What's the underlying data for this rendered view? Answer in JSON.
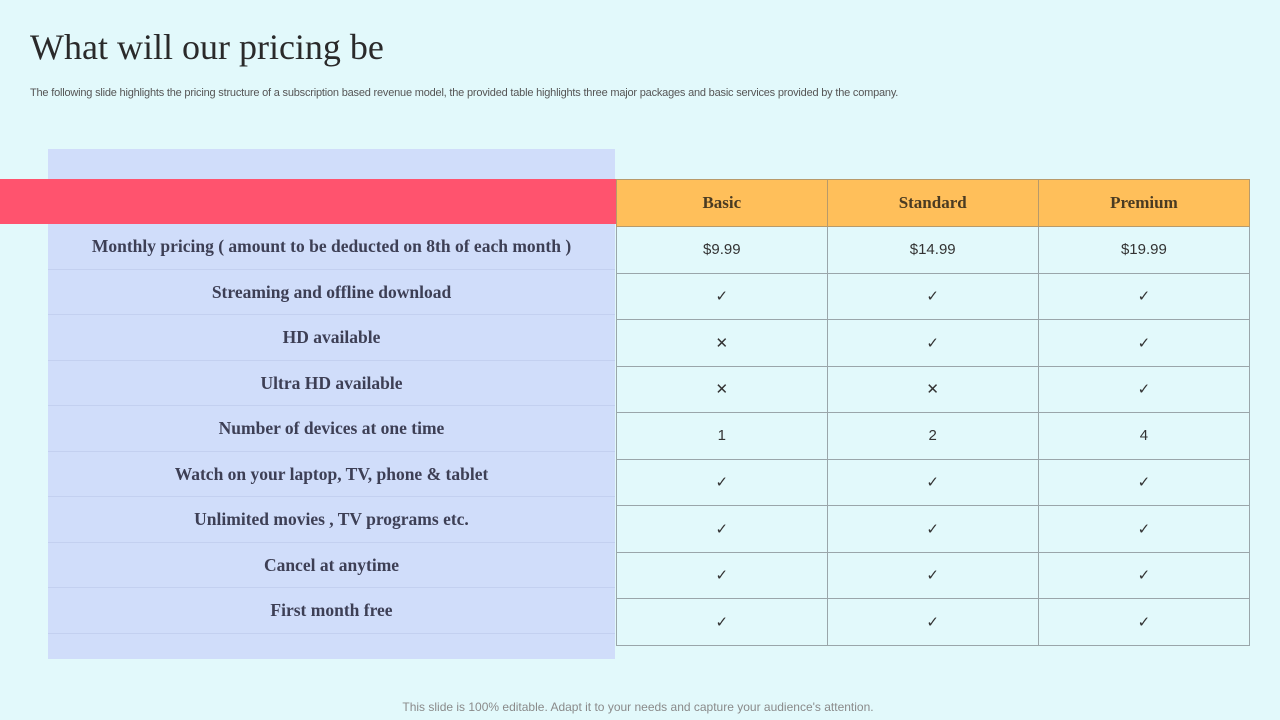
{
  "title": "What will our pricing be",
  "subtitle": "The following slide highlights the pricing structure of a subscription based revenue model, the provided table highlights three major packages and basic services provided by the company.",
  "colors": {
    "header": "#ffbf5a",
    "accent_bar": "#ff536e",
    "left_panel": "#d0ddfa",
    "mark_dark": "#3b4266",
    "mark_gold": "#f5b942"
  },
  "columns": [
    "Basic",
    "Standard",
    "Premium"
  ],
  "rows": [
    {
      "label": "Monthly pricing ( amount to be deducted on 8th of each month )",
      "values": [
        "$9.99",
        "$14.99",
        "$19.99"
      ]
    },
    {
      "label": "Streaming and offline download",
      "values": [
        "✓",
        "✓",
        "✓"
      ],
      "styles": [
        "dark",
        "gold",
        "dark"
      ]
    },
    {
      "label": "HD available",
      "values": [
        "✕",
        "✓",
        "✓"
      ],
      "styles": [
        "dark",
        "gold",
        "dark"
      ]
    },
    {
      "label": "Ultra HD available",
      "values": [
        "✕",
        "✕",
        "✓"
      ],
      "styles": [
        "dark",
        "gold",
        "dark"
      ]
    },
    {
      "label": "Number of devices at one time",
      "values": [
        "1",
        "2",
        "4"
      ]
    },
    {
      "label": "Watch on your laptop, TV, phone & tablet",
      "values": [
        "✓",
        "✓",
        "✓"
      ],
      "styles": [
        "dark",
        "gold",
        "dark"
      ]
    },
    {
      "label": "Unlimited movies , TV programs etc.",
      "values": [
        "✓",
        "✓",
        "✓"
      ],
      "styles": [
        "dark",
        "gold",
        "dark"
      ]
    },
    {
      "label": "Cancel at anytime",
      "values": [
        "✓",
        "✓",
        "✓"
      ],
      "styles": [
        "dark",
        "gold",
        "dark"
      ]
    },
    {
      "label": "First month free",
      "values": [
        "✓",
        "✓",
        "✓"
      ],
      "styles": [
        "dark",
        "gold",
        "dark"
      ]
    }
  ],
  "footer": "This slide is 100% editable. Adapt it to your needs and capture your audience's attention."
}
